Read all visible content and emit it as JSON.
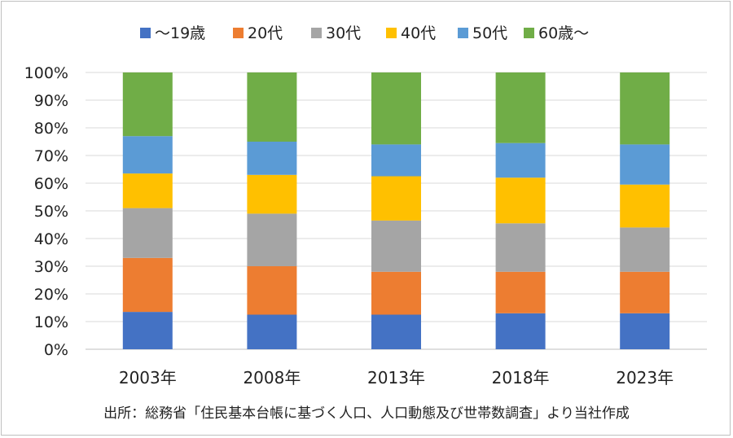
{
  "chart_data": {
    "type": "bar",
    "stacked": true,
    "categories": [
      "2003年",
      "2008年",
      "2013年",
      "2018年",
      "2023年"
    ],
    "series": [
      {
        "name": "～19歳",
        "color": "#4472C4",
        "values": [
          13.5,
          12.5,
          12.5,
          13.0,
          13.0
        ]
      },
      {
        "name": "20代",
        "color": "#ED7D31",
        "values": [
          19.5,
          17.5,
          15.5,
          15.0,
          15.0
        ]
      },
      {
        "name": "30代",
        "color": "#A5A5A5",
        "values": [
          18.0,
          19.0,
          18.5,
          17.5,
          16.0
        ]
      },
      {
        "name": "40代",
        "color": "#FFC000",
        "values": [
          12.5,
          14.0,
          16.0,
          16.5,
          15.5
        ]
      },
      {
        "name": "50代",
        "color": "#5B9BD5",
        "values": [
          13.5,
          12.0,
          11.5,
          12.5,
          14.5
        ]
      },
      {
        "name": "60歳～",
        "color": "#70AD47",
        "values": [
          23.0,
          25.0,
          26.0,
          25.5,
          26.0
        ]
      }
    ],
    "ylim": [
      0,
      100
    ],
    "yticks": [
      "0%",
      "10%",
      "20%",
      "30%",
      "40%",
      "50%",
      "60%",
      "70%",
      "80%",
      "90%",
      "100%"
    ],
    "grid": true,
    "legend_position": "top"
  },
  "source_note": "出所：総務省「住民基本台帳に基づく人口、人口動態及び世帯数調査」より当社作成"
}
